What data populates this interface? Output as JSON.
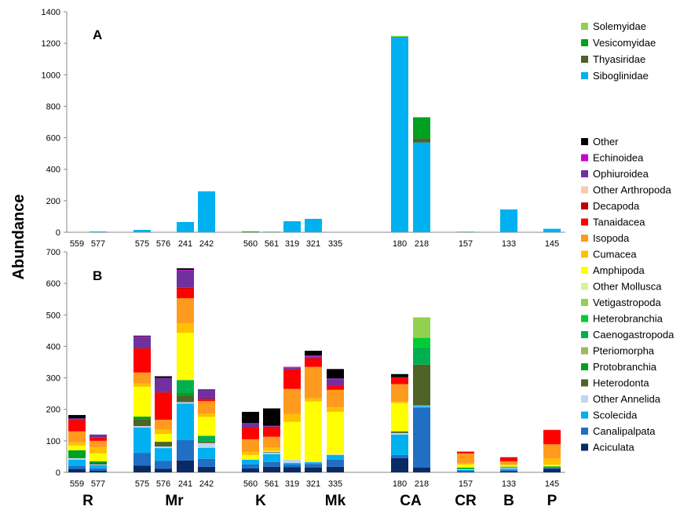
{
  "chart_data": [
    {
      "type": "bar",
      "stacked": true,
      "panel_label": "A",
      "ylabel": "Abundance",
      "ylim": [
        0,
        1400
      ],
      "yticks": [
        0,
        200,
        400,
        600,
        800,
        1000,
        1200,
        1400
      ],
      "categories": [
        "559",
        "577",
        "575",
        "576",
        "241",
        "242",
        "560",
        "561",
        "319",
        "321",
        "335",
        "180",
        "218",
        "157",
        "133",
        "145"
      ],
      "series": [
        {
          "name": "Siboglinidae",
          "color": "#00B0F0",
          "values": [
            0,
            5,
            15,
            0,
            65,
            260,
            0,
            0,
            70,
            85,
            0,
            1237,
            570,
            0,
            145,
            22
          ]
        },
        {
          "name": "Thyasiridae",
          "color": "#4F6228",
          "values": [
            0,
            0,
            0,
            0,
            0,
            0,
            0,
            0,
            0,
            0,
            0,
            0,
            25,
            0,
            0,
            0
          ]
        },
        {
          "name": "Vesicomyidae",
          "color": "#00A020",
          "values": [
            0,
            0,
            0,
            0,
            0,
            0,
            5,
            3,
            0,
            0,
            0,
            5,
            135,
            3,
            0,
            0
          ]
        },
        {
          "name": "Solemyidae",
          "color": "#92D050",
          "values": [
            0,
            0,
            0,
            0,
            0,
            0,
            0,
            0,
            0,
            0,
            0,
            5,
            0,
            0,
            0,
            0
          ]
        }
      ]
    },
    {
      "type": "bar",
      "stacked": true,
      "panel_label": "B",
      "ylim": [
        0,
        700
      ],
      "yticks": [
        0,
        100,
        200,
        300,
        400,
        500,
        600,
        700
      ],
      "categories": [
        "559",
        "577",
        "575",
        "576",
        "241",
        "242",
        "560",
        "561",
        "319",
        "321",
        "335",
        "180",
        "218",
        "157",
        "133",
        "145"
      ],
      "groups": [
        {
          "label": "R",
          "sites": [
            "559",
            "577"
          ]
        },
        {
          "label": "Mr",
          "sites": [
            "575",
            "576",
            "241",
            "242"
          ]
        },
        {
          "label": "K",
          "sites": [
            "560",
            "561"
          ]
        },
        {
          "label": "Mk",
          "sites": [
            "319",
            "321",
            "335"
          ]
        },
        {
          "label": "CA",
          "sites": [
            "180",
            "218"
          ]
        },
        {
          "label": "CR",
          "sites": [
            "157"
          ]
        },
        {
          "label": "B",
          "sites": [
            "133"
          ]
        },
        {
          "label": "P",
          "sites": [
            "145"
          ]
        }
      ],
      "series": [
        {
          "name": "Aciculata",
          "color": "#0A2A66",
          "values": [
            10,
            5,
            22,
            12,
            38,
            18,
            13,
            18,
            17,
            15,
            18,
            45,
            15,
            2,
            4,
            12
          ]
        },
        {
          "name": "Canalipalpata",
          "color": "#1F6FC5",
          "values": [
            10,
            8,
            40,
            25,
            65,
            25,
            12,
            15,
            8,
            12,
            22,
            10,
            190,
            3,
            3,
            2
          ]
        },
        {
          "name": "Scolecida",
          "color": "#00B0F0",
          "values": [
            20,
            10,
            80,
            40,
            115,
            35,
            15,
            25,
            5,
            5,
            15,
            65,
            5,
            3,
            5,
            0
          ]
        },
        {
          "name": "Other Annelida",
          "color": "#BDD7EE",
          "values": [
            5,
            2,
            5,
            5,
            5,
            15,
            0,
            5,
            10,
            3,
            2,
            5,
            2,
            2,
            3,
            0
          ]
        },
        {
          "name": "Heterodonta",
          "color": "#4F6228",
          "values": [
            0,
            5,
            20,
            15,
            20,
            5,
            0,
            2,
            0,
            0,
            0,
            5,
            130,
            0,
            0,
            0
          ]
        },
        {
          "name": "Protobranchia",
          "color": "#00A020",
          "values": [
            25,
            5,
            10,
            0,
            10,
            0,
            0,
            0,
            0,
            0,
            0,
            0,
            0,
            0,
            0,
            0
          ]
        },
        {
          "name": "Pteriomorpha",
          "color": "#9BBB59",
          "values": [
            0,
            0,
            0,
            0,
            0,
            0,
            0,
            0,
            0,
            0,
            0,
            0,
            0,
            0,
            0,
            0
          ]
        },
        {
          "name": "Caenogastropoda",
          "color": "#00B050",
          "values": [
            0,
            0,
            0,
            0,
            40,
            18,
            0,
            0,
            0,
            0,
            0,
            0,
            55,
            5,
            3,
            5
          ]
        },
        {
          "name": "Heterobranchia",
          "color": "#00CC33",
          "values": [
            0,
            0,
            0,
            0,
            0,
            0,
            0,
            0,
            0,
            0,
            0,
            0,
            30,
            0,
            0,
            0
          ]
        },
        {
          "name": "Vetigastropoda",
          "color": "#92D050",
          "values": [
            0,
            0,
            0,
            0,
            0,
            0,
            0,
            0,
            0,
            0,
            0,
            0,
            65,
            0,
            0,
            0
          ]
        },
        {
          "name": "Other Mollusca",
          "color": "#D7F29A",
          "values": [
            0,
            0,
            0,
            0,
            0,
            0,
            0,
            0,
            0,
            0,
            0,
            0,
            0,
            0,
            0,
            0
          ]
        },
        {
          "name": "Amphipoda",
          "color": "#FFFF00",
          "values": [
            15,
            25,
            95,
            25,
            150,
            60,
            15,
            3,
            120,
            190,
            135,
            90,
            0,
            10,
            5,
            5
          ]
        },
        {
          "name": "Cumacea",
          "color": "#FFC000",
          "values": [
            10,
            20,
            10,
            15,
            30,
            10,
            10,
            10,
            25,
            10,
            15,
            5,
            0,
            5,
            2,
            20
          ]
        },
        {
          "name": "Isopoda",
          "color": "#FF9A1E",
          "values": [
            35,
            20,
            35,
            30,
            80,
            40,
            40,
            35,
            80,
            100,
            55,
            55,
            0,
            30,
            10,
            45
          ]
        },
        {
          "name": "Tanaidacea",
          "color": "#FF0000",
          "values": [
            35,
            10,
            75,
            85,
            30,
            5,
            35,
            30,
            60,
            25,
            12,
            20,
            0,
            5,
            10,
            45
          ]
        },
        {
          "name": "Decapoda",
          "color": "#C00000",
          "values": [
            2,
            0,
            3,
            3,
            3,
            3,
            2,
            2,
            2,
            3,
            2,
            2,
            0,
            1,
            3,
            1
          ]
        },
        {
          "name": "Other Arthropoda",
          "color": "#F8CBAD",
          "values": [
            0,
            0,
            0,
            0,
            0,
            0,
            0,
            0,
            0,
            0,
            0,
            0,
            0,
            0,
            0,
            0
          ]
        },
        {
          "name": "Ophiuroidea",
          "color": "#7030A0",
          "values": [
            5,
            10,
            35,
            45,
            55,
            30,
            15,
            3,
            5,
            5,
            20,
            0,
            0,
            0,
            0,
            0
          ]
        },
        {
          "name": "Echinoidea",
          "color": "#CC00CC",
          "values": [
            0,
            0,
            2,
            0,
            2,
            0,
            0,
            0,
            3,
            3,
            2,
            0,
            0,
            0,
            0,
            0
          ]
        },
        {
          "name": "Other",
          "color": "#000000",
          "values": [
            10,
            0,
            2,
            5,
            5,
            0,
            35,
            55,
            0,
            15,
            30,
            10,
            0,
            0,
            0,
            0
          ]
        }
      ]
    }
  ],
  "legend_top": [
    "Solemyidae",
    "Vesicomyidae",
    "Thyasiridae",
    "Siboglinidae"
  ],
  "legend_bottom": [
    "Other",
    "Echinoidea",
    "Ophiuroidea",
    "Other Arthropoda",
    "Decapoda",
    "Tanaidacea",
    "Isopoda",
    "Cumacea",
    "Amphipoda",
    "Other Mollusca",
    "Vetigastropoda",
    "Heterobranchia",
    "Caenogastropoda",
    "Pteriomorpha",
    "Protobranchia",
    "Heterodonta",
    "Other Annelida",
    "Scolecida",
    "Canalipalpata",
    "Aciculata"
  ]
}
